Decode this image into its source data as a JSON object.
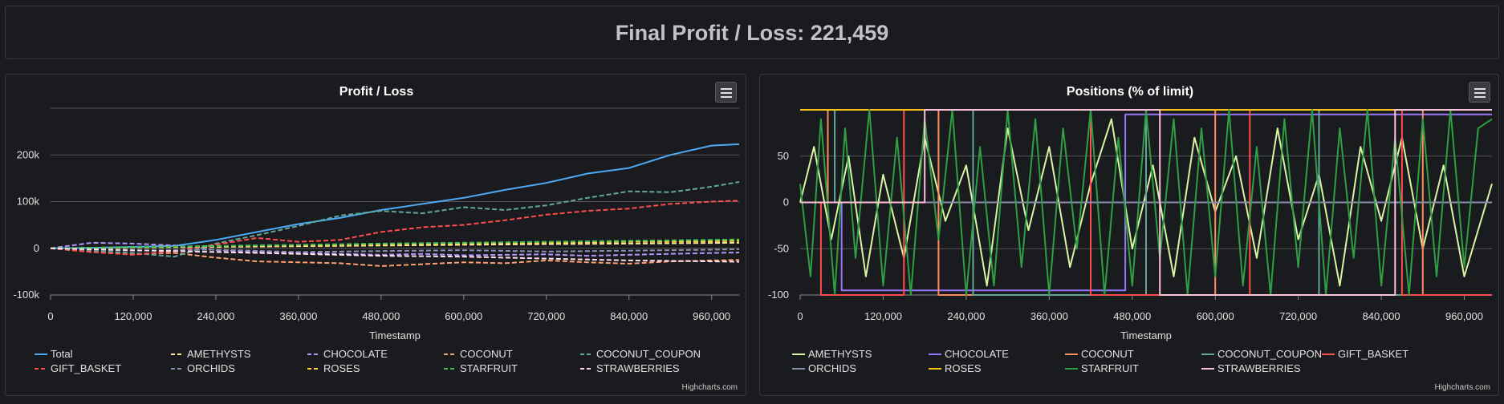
{
  "header": {
    "title": "Final Profit / Loss: 221,459"
  },
  "credit": "Highcharts.com",
  "chart_data": [
    {
      "type": "line",
      "title": "Profit / Loss",
      "xlabel": "Timestamp",
      "ylabel": "",
      "xlim": [
        0,
        1000000
      ],
      "ylim": [
        -100000,
        300000
      ],
      "xticks": [
        0,
        120000,
        240000,
        360000,
        480000,
        600000,
        720000,
        840000,
        960000
      ],
      "xtick_labels": [
        "0",
        "120,000",
        "240,000",
        "360,000",
        "480,000",
        "600,000",
        "720,000",
        "840,000",
        "960,000"
      ],
      "yticks": [
        -100000,
        0,
        100000,
        200000
      ],
      "ytick_labels": [
        "-100k",
        "0",
        "100k",
        "200k"
      ],
      "legend": "bottom",
      "grid": true,
      "series": [
        {
          "name": "Total",
          "color": "#4dabf5",
          "dash": "solid",
          "x": [
            0,
            60000,
            120000,
            180000,
            240000,
            300000,
            360000,
            420000,
            480000,
            540000,
            600000,
            660000,
            720000,
            780000,
            840000,
            900000,
            960000,
            1000000
          ],
          "y": [
            0,
            1000,
            3000,
            5000,
            18000,
            35000,
            52000,
            65000,
            82000,
            95000,
            108000,
            125000,
            140000,
            160000,
            172000,
            200000,
            220000,
            223000
          ]
        },
        {
          "name": "AMETHYSTS",
          "color": "#ffe79a",
          "dash": "dashed",
          "x": [
            0,
            120000,
            240000,
            360000,
            480000,
            600000,
            720000,
            840000,
            960000,
            1000000
          ],
          "y": [
            0,
            1500,
            3000,
            4500,
            6000,
            7500,
            9000,
            10000,
            11500,
            12000
          ]
        },
        {
          "name": "CHOCOLATE",
          "color": "#b197fc",
          "dash": "dashed",
          "x": [
            0,
            60000,
            120000,
            180000,
            240000,
            300000,
            360000,
            420000,
            480000,
            540000,
            600000,
            660000,
            720000,
            780000,
            840000,
            900000,
            960000,
            1000000
          ],
          "y": [
            0,
            12000,
            10000,
            6000,
            -4000,
            -8000,
            -10000,
            -12000,
            -14000,
            -12000,
            -15000,
            -14000,
            -13000,
            -16000,
            -14000,
            -12000,
            -10000,
            -9000
          ]
        },
        {
          "name": "COCONUT",
          "color": "#ffa06e",
          "dash": "dashed",
          "x": [
            0,
            60000,
            120000,
            180000,
            240000,
            300000,
            360000,
            420000,
            480000,
            540000,
            600000,
            660000,
            720000,
            780000,
            840000,
            900000,
            960000,
            1000000
          ],
          "y": [
            0,
            -8000,
            -12000,
            -10000,
            -20000,
            -28000,
            -30000,
            -32000,
            -38000,
            -34000,
            -30000,
            -32000,
            -26000,
            -30000,
            -33000,
            -28000,
            -26000,
            -25000
          ]
        },
        {
          "name": "COCONUT_COUPON",
          "color": "#63a79b",
          "dash": "dashed",
          "x": [
            0,
            60000,
            120000,
            180000,
            240000,
            300000,
            360000,
            420000,
            480000,
            540000,
            600000,
            660000,
            720000,
            780000,
            840000,
            900000,
            960000,
            1000000
          ],
          "y": [
            0,
            -6000,
            -10000,
            -18000,
            10000,
            28000,
            48000,
            70000,
            80000,
            75000,
            88000,
            82000,
            92000,
            108000,
            122000,
            120000,
            132000,
            142000
          ]
        },
        {
          "name": "GIFT_BASKET",
          "color": "#ff4d4d",
          "dash": "dashed",
          "x": [
            0,
            60000,
            120000,
            180000,
            240000,
            300000,
            360000,
            420000,
            480000,
            540000,
            600000,
            660000,
            720000,
            780000,
            840000,
            900000,
            960000,
            1000000
          ],
          "y": [
            0,
            -8000,
            -14000,
            -6000,
            8000,
            22000,
            14000,
            18000,
            35000,
            45000,
            50000,
            60000,
            72000,
            80000,
            85000,
            95000,
            100000,
            102000
          ]
        },
        {
          "name": "ORCHIDS",
          "color": "#8b8fb0",
          "dash": "dashed",
          "x": [
            0,
            120000,
            240000,
            360000,
            480000,
            600000,
            720000,
            840000,
            960000,
            1000000
          ],
          "y": [
            0,
            -5000,
            -3000,
            -8000,
            -6000,
            -4000,
            -7000,
            -5000,
            -3000,
            -2000
          ]
        },
        {
          "name": "ROSES",
          "color": "#ffd43b",
          "dash": "dashed",
          "x": [
            0,
            120000,
            240000,
            360000,
            480000,
            600000,
            720000,
            840000,
            960000,
            1000000
          ],
          "y": [
            0,
            2000,
            4000,
            6000,
            8000,
            10000,
            12000,
            14000,
            15000,
            16000
          ]
        },
        {
          "name": "STARFRUIT",
          "color": "#40c057",
          "dash": "dashed",
          "x": [
            0,
            120000,
            240000,
            360000,
            480000,
            600000,
            720000,
            840000,
            960000,
            1000000
          ],
          "y": [
            0,
            2500,
            5000,
            7500,
            10000,
            12000,
            14000,
            16000,
            18000,
            19000
          ]
        },
        {
          "name": "STRAWBERRIES",
          "color": "#ffdeeb",
          "dash": "dashed",
          "x": [
            0,
            120000,
            240000,
            360000,
            480000,
            600000,
            720000,
            840000,
            960000,
            1000000
          ],
          "y": [
            0,
            -4000,
            -8000,
            -12000,
            -16000,
            -18000,
            -22000,
            -26000,
            -28000,
            -29000
          ]
        }
      ]
    },
    {
      "type": "line",
      "title": "Positions (% of limit)",
      "xlabel": "Timestamp",
      "ylabel": "",
      "xlim": [
        0,
        1000000
      ],
      "ylim": [
        -100,
        100
      ],
      "xticks": [
        0,
        120000,
        240000,
        360000,
        480000,
        600000,
        720000,
        840000,
        960000
      ],
      "xtick_labels": [
        "0",
        "120,000",
        "240,000",
        "360,000",
        "480,000",
        "600,000",
        "720,000",
        "840,000",
        "960,000"
      ],
      "yticks": [
        -100,
        -50,
        0,
        50
      ],
      "ytick_labels": [
        "-100",
        "-50",
        "0",
        "50"
      ],
      "legend": "bottom",
      "grid": true,
      "series": [
        {
          "name": "AMETHYSTS",
          "color": "#d8f5a2",
          "dash": "solid",
          "x": [
            0,
            20000,
            45000,
            70000,
            95000,
            120000,
            150000,
            180000,
            210000,
            240000,
            270000,
            300000,
            330000,
            360000,
            390000,
            420000,
            450000,
            480000,
            510000,
            540000,
            570000,
            600000,
            630000,
            660000,
            690000,
            720000,
            750000,
            780000,
            810000,
            840000,
            870000,
            900000,
            930000,
            960000,
            1000000
          ],
          "y": [
            0,
            60,
            -40,
            50,
            -80,
            30,
            -60,
            70,
            -20,
            40,
            -90,
            80,
            -30,
            60,
            -70,
            20,
            90,
            -50,
            40,
            -80,
            70,
            -10,
            50,
            -60,
            80,
            -40,
            30,
            -90,
            60,
            -20,
            70,
            -50,
            40,
            -80,
            20
          ]
        },
        {
          "name": "CHOCOLATE",
          "color": "#9775fa",
          "dash": "solid",
          "x": [
            0,
            60000,
            60001,
            470000,
            470001,
            1000000
          ],
          "y": [
            0,
            0,
            -95,
            -95,
            95,
            95
          ]
        },
        {
          "name": "COCONUT",
          "color": "#ff8c5a",
          "dash": "solid",
          "x": [
            0,
            40000,
            40001,
            200000,
            200001,
            600000,
            600001,
            900000,
            900001,
            1000000
          ],
          "y": [
            0,
            0,
            100,
            100,
            -100,
            -100,
            100,
            100,
            -100,
            -100
          ]
        },
        {
          "name": "COCONUT_COUPON",
          "color": "#63a79b",
          "dash": "solid",
          "x": [
            0,
            50000,
            50001,
            250000,
            250001,
            500000,
            500001,
            750000,
            750001,
            1000000
          ],
          "y": [
            0,
            0,
            100,
            100,
            -100,
            -100,
            100,
            100,
            -100,
            -100
          ]
        },
        {
          "name": "GIFT_BASKET",
          "color": "#ff4d4d",
          "dash": "solid",
          "x": [
            0,
            30000,
            30001,
            150000,
            150001,
            420000,
            420001,
            650000,
            650001,
            870000,
            870001,
            1000000
          ],
          "y": [
            0,
            0,
            -100,
            -100,
            100,
            100,
            -100,
            -100,
            100,
            100,
            -100,
            -100
          ]
        },
        {
          "name": "ORCHIDS",
          "color": "#8b8fb0",
          "dash": "solid",
          "x": [
            0,
            1000000
          ],
          "y": [
            0,
            0
          ]
        },
        {
          "name": "ROSES",
          "color": "#fcc419",
          "dash": "solid",
          "x": [
            0,
            1000000
          ],
          "y": [
            100,
            100
          ]
        },
        {
          "name": "STARFRUIT",
          "color": "#2f9e44",
          "dash": "solid",
          "x": [
            0,
            15000,
            30000,
            50000,
            65000,
            80000,
            100000,
            120000,
            140000,
            160000,
            180000,
            200000,
            220000,
            240000,
            260000,
            280000,
            300000,
            320000,
            340000,
            360000,
            380000,
            400000,
            420000,
            440000,
            460000,
            480000,
            500000,
            520000,
            540000,
            560000,
            580000,
            600000,
            620000,
            640000,
            660000,
            680000,
            700000,
            720000,
            740000,
            760000,
            780000,
            800000,
            820000,
            840000,
            860000,
            880000,
            900000,
            920000,
            940000,
            960000,
            980000,
            1000000
          ],
          "y": [
            20,
            -80,
            90,
            -100,
            80,
            -60,
            100,
            -90,
            70,
            -100,
            90,
            -40,
            100,
            -100,
            60,
            -90,
            100,
            -70,
            90,
            -100,
            80,
            -50,
            100,
            -100,
            70,
            -90,
            100,
            -60,
            90,
            -100,
            80,
            -80,
            100,
            -90,
            60,
            -100,
            90,
            -70,
            100,
            -100,
            80,
            -60,
            100,
            -90,
            70,
            -100,
            90,
            -80,
            100,
            -70,
            80,
            90
          ]
        },
        {
          "name": "STRAWBERRIES",
          "color": "#fcc2d7",
          "dash": "solid",
          "x": [
            0,
            180000,
            180001,
            520000,
            520001,
            860000,
            860001,
            1000000
          ],
          "y": [
            0,
            0,
            100,
            100,
            -100,
            -100,
            100,
            100
          ]
        }
      ]
    }
  ]
}
